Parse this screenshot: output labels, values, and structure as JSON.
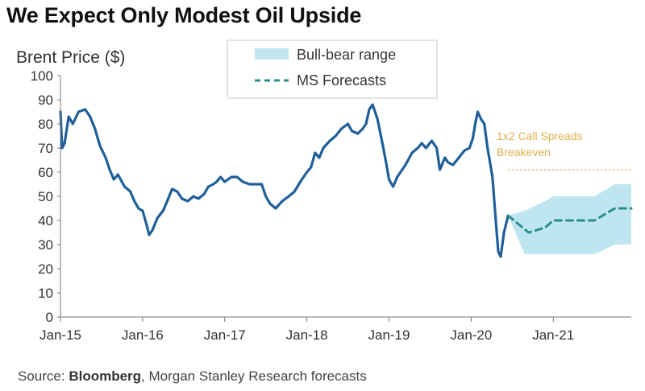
{
  "chart_data": {
    "type": "line",
    "title": "We Expect Only Modest Oil Upside",
    "ylabel": "Brent Price ($)",
    "xlabel": "",
    "ylim": [
      0,
      100
    ],
    "y_ticks": [
      "0",
      "10",
      "20",
      "30",
      "40",
      "50",
      "60",
      "70",
      "80",
      "90",
      "100"
    ],
    "x_tick_labels": [
      "Jan-15",
      "Jan-16",
      "Jan-17",
      "Jan-18",
      "Jan-19",
      "Jan-20",
      "Jan-21"
    ],
    "x_range_years": [
      2015.0,
      2021.95
    ],
    "grid": false,
    "legend": {
      "placement": "top-center",
      "entries": [
        "Bull-bear range",
        "MS Forecasts"
      ]
    },
    "series": [
      {
        "name": "Brent Price",
        "color": "#1f5f99",
        "x": [
          2015.0,
          2015.02,
          2015.05,
          2015.1,
          2015.15,
          2015.22,
          2015.3,
          2015.36,
          2015.42,
          2015.48,
          2015.55,
          2015.6,
          2015.65,
          2015.7,
          2015.78,
          2015.85,
          2015.9,
          2015.95,
          2016.0,
          2016.05,
          2016.08,
          2016.12,
          2016.18,
          2016.25,
          2016.3,
          2016.36,
          2016.42,
          2016.48,
          2016.55,
          2016.62,
          2016.68,
          2016.75,
          2016.8,
          2016.86,
          2016.9,
          2016.95,
          2017.0,
          2017.08,
          2017.15,
          2017.22,
          2017.3,
          2017.38,
          2017.45,
          2017.5,
          2017.55,
          2017.62,
          2017.7,
          2017.78,
          2017.85,
          2017.92,
          2018.0,
          2018.05,
          2018.1,
          2018.15,
          2018.2,
          2018.28,
          2018.35,
          2018.42,
          2018.5,
          2018.55,
          2018.62,
          2018.68,
          2018.72,
          2018.76,
          2018.8,
          2018.86,
          2018.92,
          2018.97,
          2019.0,
          2019.05,
          2019.1,
          2019.2,
          2019.28,
          2019.35,
          2019.4,
          2019.45,
          2019.52,
          2019.58,
          2019.62,
          2019.68,
          2019.72,
          2019.78,
          2019.85,
          2019.92,
          2019.98,
          2020.02,
          2020.05,
          2020.08,
          2020.12,
          2020.16,
          2020.2,
          2020.23,
          2020.26,
          2020.3,
          2020.33,
          2020.36,
          2020.4,
          2020.45
        ],
        "y": [
          85,
          70,
          72,
          83,
          80,
          85,
          86,
          83,
          78,
          71,
          66,
          61,
          57,
          59,
          54,
          52,
          48,
          45,
          44,
          38,
          34,
          36,
          41,
          44,
          48,
          53,
          52,
          49,
          48,
          50,
          49,
          51,
          54,
          55,
          56,
          58,
          56,
          58,
          58,
          56,
          55,
          55,
          55,
          50,
          47,
          45,
          48,
          50,
          52,
          56,
          60,
          62,
          68,
          66,
          70,
          73,
          75,
          78,
          80,
          77,
          76,
          78,
          80,
          86,
          88,
          82,
          72,
          63,
          57,
          54,
          58,
          63,
          68,
          70,
          72,
          70,
          73,
          70,
          61,
          66,
          64,
          63,
          66,
          69,
          70,
          74,
          80,
          85,
          82,
          80,
          70,
          64,
          58,
          40,
          27,
          25,
          35,
          42
        ]
      },
      {
        "name": "MS Forecasts",
        "color": "#2a8f8c",
        "dashed": true,
        "x": [
          2020.45,
          2020.7,
          2020.9,
          2021.0,
          2021.25,
          2021.5,
          2021.75,
          2021.95
        ],
        "y": [
          42,
          35,
          37,
          40,
          40,
          40,
          45,
          45
        ]
      }
    ],
    "band": {
      "name": "Bull-bear range",
      "color": "#bfe6f0",
      "x": [
        2020.45,
        2020.65,
        2020.9,
        2021.0,
        2021.25,
        2021.5,
        2021.75,
        2021.95
      ],
      "upper": [
        42,
        44,
        48,
        50,
        50,
        50,
        55,
        55
      ],
      "lower": [
        42,
        26,
        26,
        26,
        26,
        26,
        30,
        30
      ]
    },
    "reference_line": {
      "value": 61,
      "x_start": 2020.45,
      "color": "#e0b04a"
    },
    "annotations": [
      "1x2 Call Spreads",
      "Breakeven"
    ]
  },
  "source": {
    "prefix": "Source: ",
    "bold": "Bloomberg",
    "rest": ", Morgan Stanley Research forecasts"
  }
}
